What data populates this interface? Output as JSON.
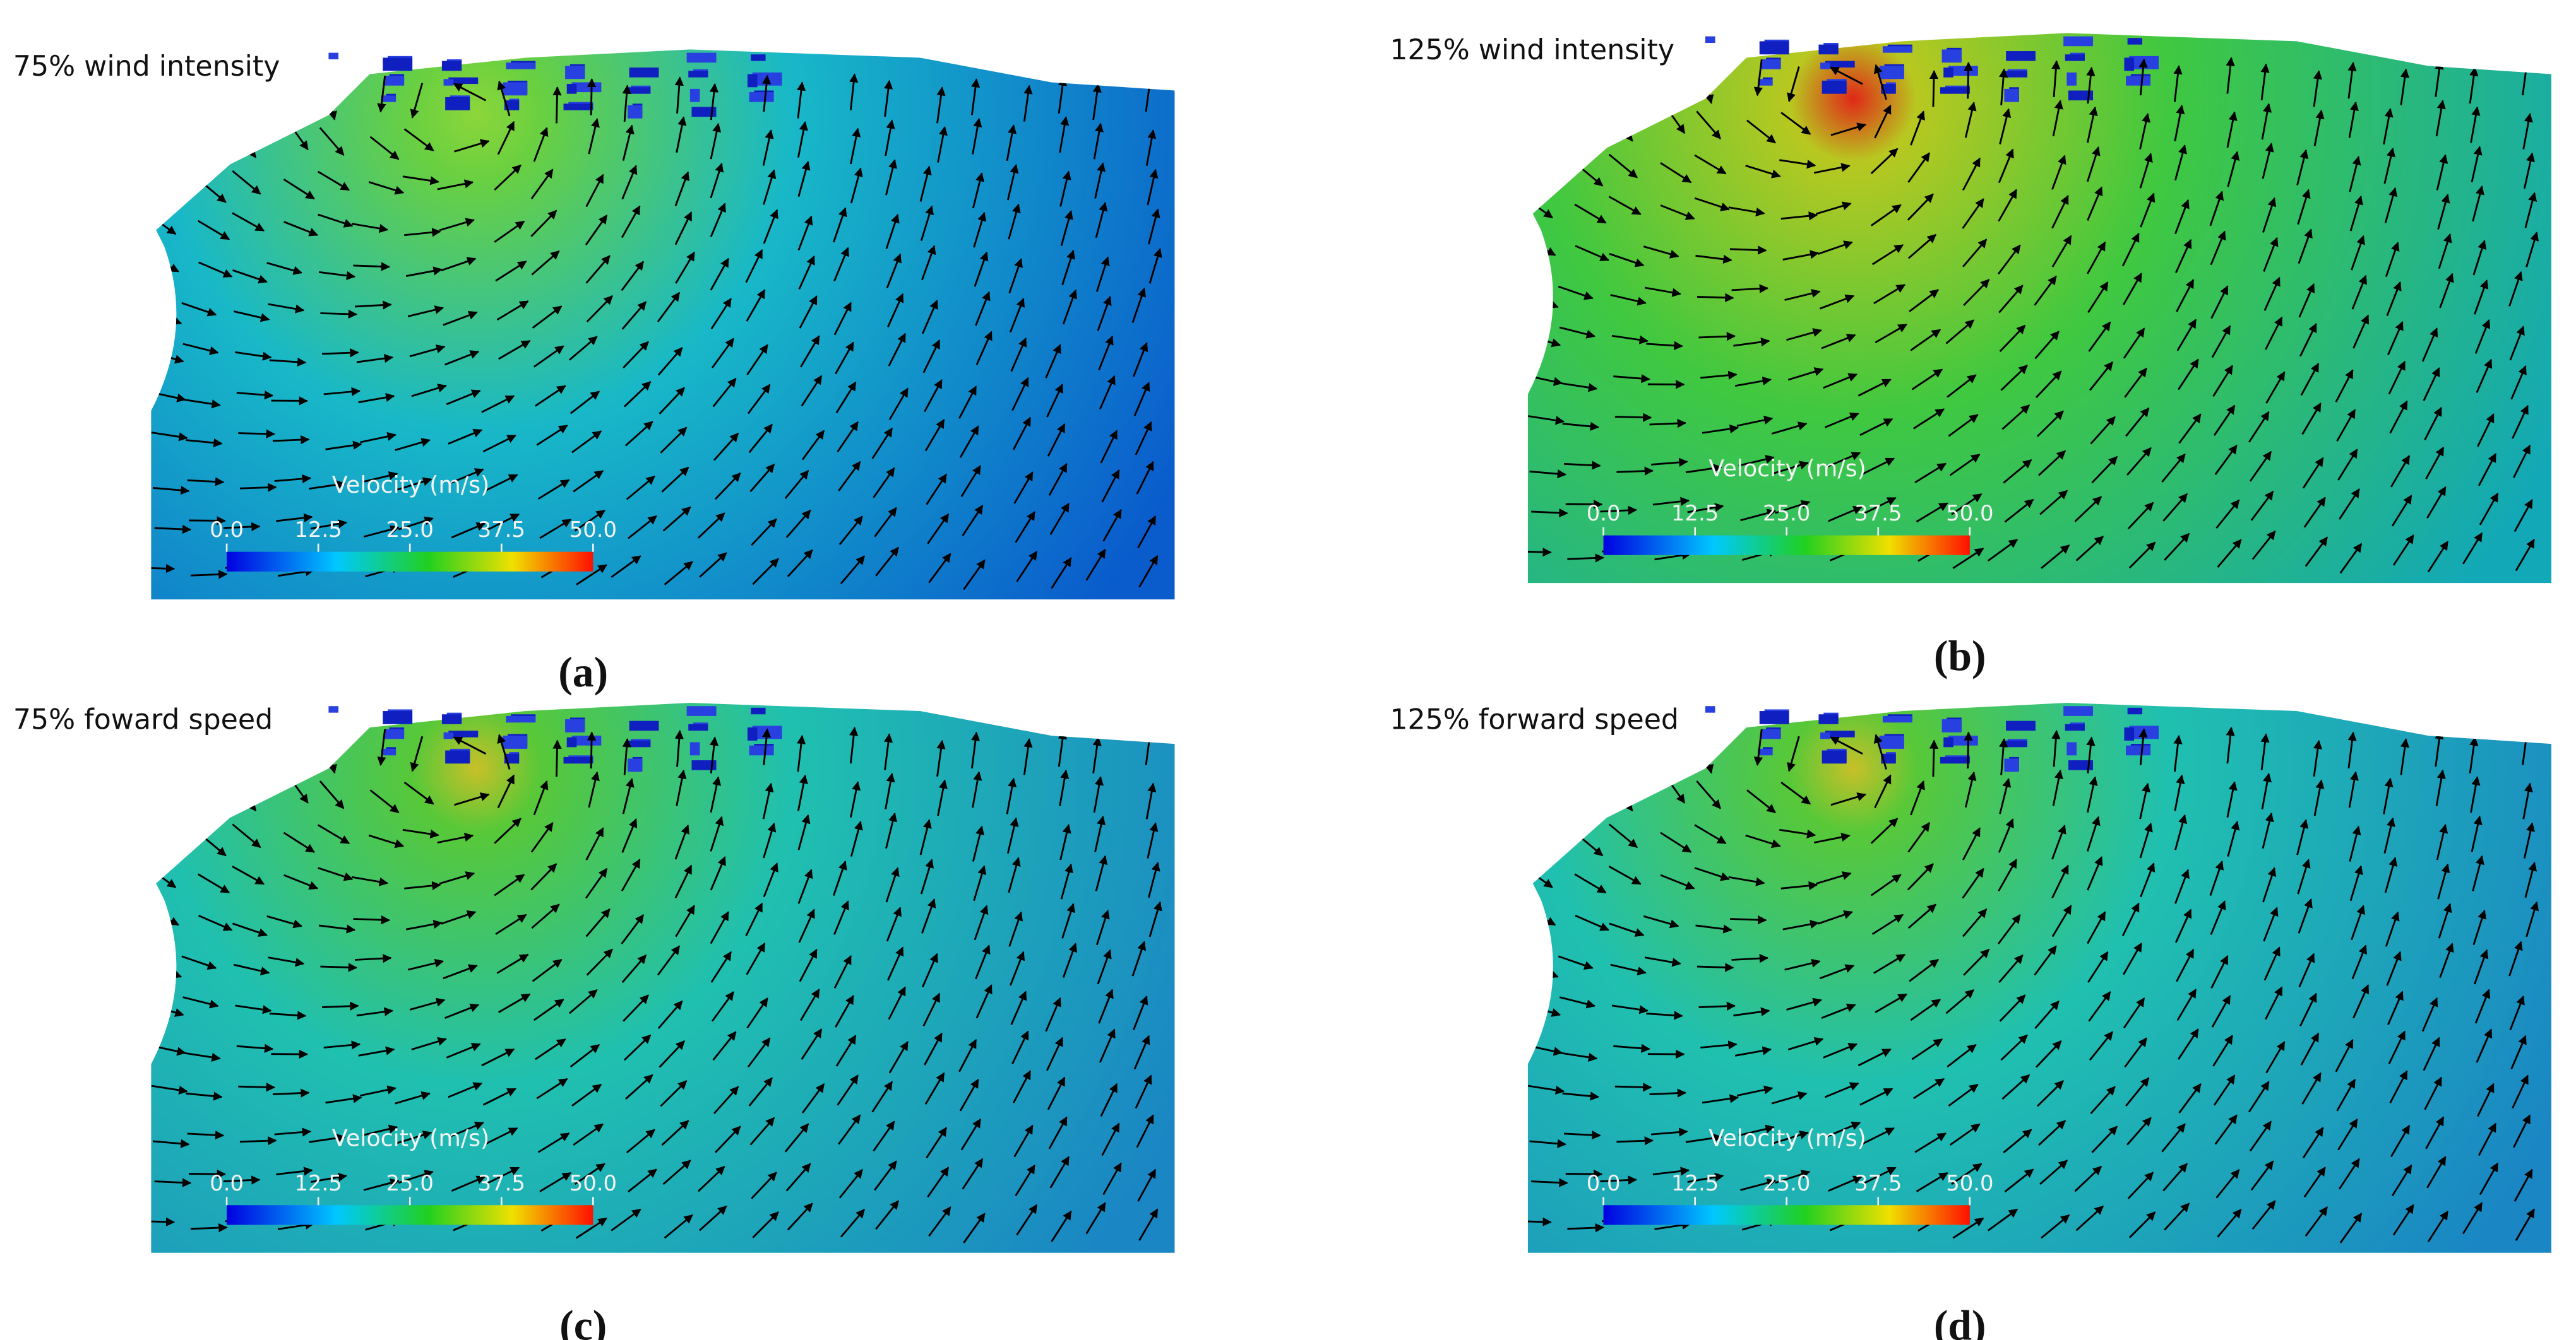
{
  "panels": [
    {
      "title": "75% wind intensity",
      "caption": "(a)",
      "colorbar": {
        "title": "Velocity (m/s)",
        "range": [
          0,
          50
        ],
        "ticks": [
          {
            "value": 0,
            "label": "0.0"
          },
          {
            "value": 12.5,
            "label": "12.5"
          },
          {
            "value": 25,
            "label": "25.0"
          },
          {
            "value": 37.5,
            "label": "37.5"
          },
          {
            "value": 50,
            "label": "50.0"
          }
        ]
      }
    },
    {
      "title": "125% wind intensity",
      "caption": "(b)",
      "colorbar": {
        "title": "Velocity (m/s)",
        "range": [
          0,
          50
        ],
        "ticks": [
          {
            "value": 0,
            "label": "0.0"
          },
          {
            "value": 12.5,
            "label": "12.5"
          },
          {
            "value": 25,
            "label": "25.0"
          },
          {
            "value": 37.5,
            "label": "37.5"
          },
          {
            "value": 50,
            "label": "50.0"
          }
        ]
      }
    },
    {
      "title": "75% foward speed",
      "caption": "(c)",
      "colorbar": {
        "title": "Velocity (m/s)",
        "range": [
          0,
          50
        ],
        "ticks": [
          {
            "value": 0,
            "label": "0.0"
          },
          {
            "value": 12.5,
            "label": "12.5"
          },
          {
            "value": 25,
            "label": "25.0"
          },
          {
            "value": 37.5,
            "label": "37.5"
          },
          {
            "value": 50,
            "label": "50.0"
          }
        ]
      }
    },
    {
      "title": "125% forward speed",
      "caption": "(d)",
      "colorbar": {
        "title": "Velocity (m/s)",
        "range": [
          0,
          50
        ],
        "ticks": [
          {
            "value": 0,
            "label": "0.0"
          },
          {
            "value": 12.5,
            "label": "12.5"
          },
          {
            "value": 25,
            "label": "25.0"
          },
          {
            "value": 37.5,
            "label": "37.5"
          },
          {
            "value": 50,
            "label": "50.0"
          }
        ]
      }
    }
  ]
}
